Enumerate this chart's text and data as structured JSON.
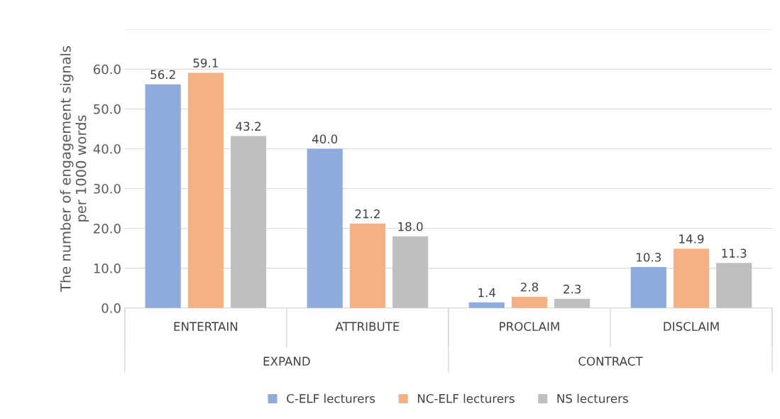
{
  "chart_data": {
    "type": "bar",
    "ylabel": "The number of engagement signals\nper 1000 words",
    "categories": [
      "ENTERTAIN",
      "ATTRIBUTE",
      "PROCLAIM",
      "DISCLAIM"
    ],
    "series": [
      {
        "name": "C-ELF lecturers",
        "color": "#8faadc",
        "values": [
          56.2,
          40.0,
          1.4,
          10.3
        ],
        "value_labels": [
          "56.2",
          "40.0",
          "1.4",
          "10.3"
        ]
      },
      {
        "name": "NC-ELF lecturers",
        "color": "#f4b183",
        "values": [
          59.1,
          21.2,
          2.8,
          14.9
        ],
        "value_labels": [
          "59.1",
          "21.2",
          "2.8",
          "14.9"
        ]
      },
      {
        "name": "NS lecturers",
        "color": "#bfbfbf",
        "values": [
          43.2,
          18.0,
          2.3,
          11.3
        ],
        "value_labels": [
          "43.2",
          "18.0",
          "2.3",
          "11.3"
        ]
      }
    ],
    "annotations": [
      "EXPAND",
      "CONTRACT"
    ],
    "ylim": [
      0,
      70
    ],
    "yticks": [
      {
        "value": 0,
        "label": "0.0"
      },
      {
        "value": 10,
        "label": "10.0"
      },
      {
        "value": 20,
        "label": "20.0"
      },
      {
        "value": 30,
        "label": "30.0"
      },
      {
        "value": 40,
        "label": "40.0"
      },
      {
        "value": 50,
        "label": "50.0"
      },
      {
        "value": 60,
        "label": "60.0"
      },
      {
        "value": 70,
        "label": null
      }
    ],
    "grid": "y",
    "legend": "bottom"
  }
}
